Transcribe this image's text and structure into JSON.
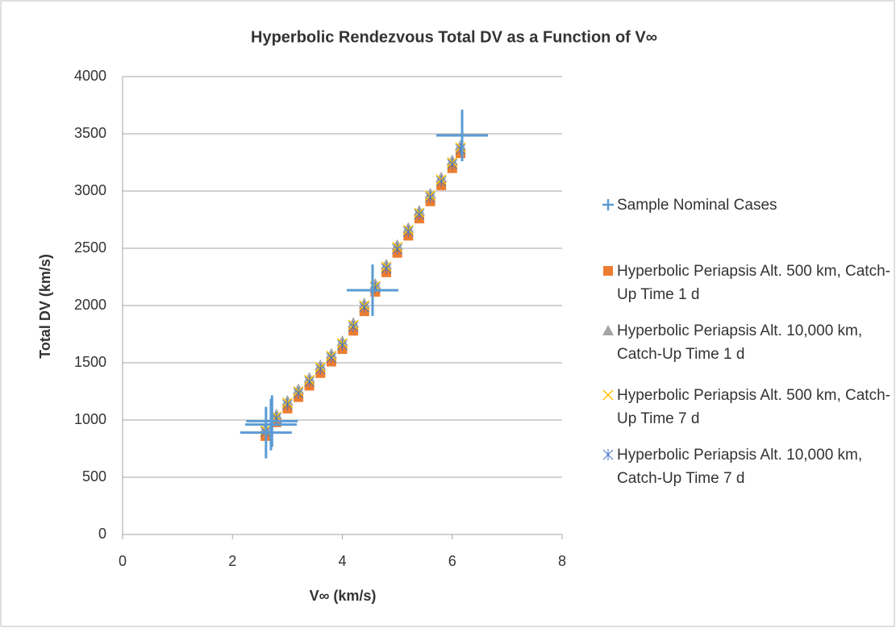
{
  "chart_data": {
    "type": "scatter",
    "title": "Hyperbolic Rendezvous Total DV as a Function of V∞",
    "xlabel": "V∞ (km/s)",
    "ylabel": "Total DV (km/s)",
    "xlim": [
      0,
      8
    ],
    "xticks": [
      0,
      2,
      4,
      6,
      8
    ],
    "ylim": [
      0,
      4000
    ],
    "yticks": [
      0,
      500,
      1000,
      1500,
      2000,
      2500,
      3000,
      3500,
      4000
    ],
    "grid": true,
    "legend": "right",
    "series": [
      {
        "name": "Sample Nominal Cases",
        "color": "#5b9bd5",
        "marker": "plus",
        "x": [
          2.61,
          2.72,
          2.7,
          4.55,
          6.18
        ],
        "values": [
          890,
          990,
          960,
          2134,
          3486
        ]
      },
      {
        "name": "Hyperbolic Periapsis Alt. 500 km, Catch-Up Time 1 d",
        "color": "#ed7d31",
        "marker": "square",
        "x": [
          2.6,
          2.8,
          3.0,
          3.2,
          3.4,
          3.6,
          3.8,
          4.0,
          4.2,
          4.4,
          4.6,
          4.8,
          5.0,
          5.2,
          5.4,
          5.6,
          5.8,
          6.0,
          6.15
        ],
        "values": [
          860,
          980,
          1100,
          1200,
          1300,
          1410,
          1510,
          1620,
          1780,
          1950,
          2120,
          2290,
          2460,
          2610,
          2760,
          2910,
          3050,
          3200,
          3330
        ]
      },
      {
        "name": "Hyperbolic Periapsis Alt. 10,000 km, Catch-Up Time 1 d",
        "color": "#a5a5a5",
        "marker": "triangle",
        "x": [
          2.6,
          2.8,
          3.0,
          3.2,
          3.4,
          3.6,
          3.8,
          4.0,
          4.2,
          4.4,
          4.6,
          4.8,
          5.0,
          5.2,
          5.4,
          5.6,
          5.8,
          6.0,
          6.15
        ],
        "values": [
          930,
          1050,
          1170,
          1270,
          1370,
          1480,
          1580,
          1690,
          1850,
          2020,
          2190,
          2360,
          2530,
          2680,
          2830,
          2980,
          3120,
          3270,
          3400
        ]
      },
      {
        "name": "Hyperbolic Periapsis Alt. 500 km, Catch-Up Time 7 d",
        "color": "#ffc000",
        "marker": "x",
        "x": [
          2.6,
          2.8,
          3.0,
          3.2,
          3.4,
          3.6,
          3.8,
          4.0,
          4.2,
          4.4,
          4.6,
          4.8,
          5.0,
          5.2,
          5.4,
          5.6,
          5.8,
          6.0,
          6.15
        ],
        "values": [
          910,
          1030,
          1150,
          1250,
          1350,
          1460,
          1560,
          1670,
          1830,
          2000,
          2170,
          2340,
          2510,
          2660,
          2810,
          2960,
          3100,
          3250,
          3380
        ]
      },
      {
        "name": "Hyperbolic Periapsis Alt. 10,000 km, Catch-Up Time 7 d",
        "color": "#4472c4",
        "marker": "asterisk",
        "x": [
          2.6,
          2.8,
          3.0,
          3.2,
          3.4,
          3.6,
          3.8,
          4.0,
          4.2,
          4.4,
          4.6,
          4.8,
          5.0,
          5.2,
          5.4,
          5.6,
          5.8,
          6.0,
          6.15
        ],
        "values": [
          895,
          1015,
          1135,
          1235,
          1335,
          1445,
          1545,
          1655,
          1815,
          1985,
          2155,
          2325,
          2495,
          2645,
          2795,
          2945,
          3085,
          3235,
          3365
        ]
      }
    ]
  }
}
